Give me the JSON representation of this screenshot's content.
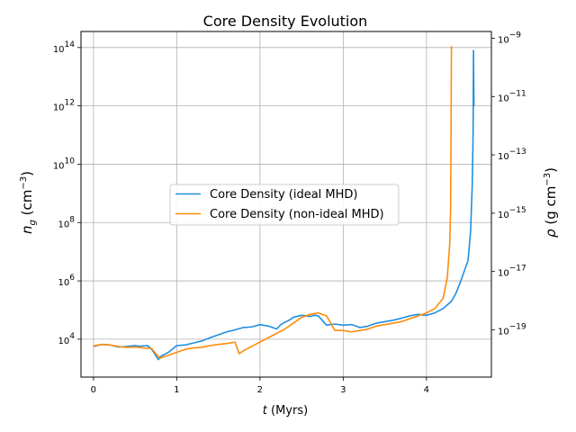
{
  "chart_data": {
    "type": "line",
    "title": "Core Density Evolution",
    "xlabel_var": "t",
    "xlabel_unit": " (Myrs)",
    "ylabel_left_var": "n",
    "ylabel_left_sub": "g",
    "ylabel_left_unit": " (cm",
    "ylabel_left_exp": "−3",
    "ylabel_left_close": ")",
    "ylabel_right_var": "ρ",
    "ylabel_right_unit": " (g cm",
    "ylabel_right_exp": "−3",
    "ylabel_right_close": ")",
    "xlim": [
      -0.15,
      4.78
    ],
    "ylim_log10_ng": [
      2.7,
      14.55
    ],
    "ylim_log10_rho": [
      -20.62,
      -8.77
    ],
    "x_ticks": [
      0,
      1,
      2,
      3,
      4
    ],
    "y_left_ticks": [
      4,
      6,
      8,
      10,
      12,
      14
    ],
    "y_right_ticks": [
      -19,
      -17,
      -15,
      -13,
      -11,
      -9
    ],
    "grid": true,
    "legend_position": "center",
    "series": [
      {
        "name": "Core Density (ideal MHD)",
        "color": "#1f8fe0",
        "x": [
          0,
          0.1,
          0.2,
          0.3,
          0.4,
          0.5,
          0.55,
          0.65,
          0.7,
          0.78,
          0.8,
          0.9,
          1.0,
          1.1,
          1.2,
          1.3,
          1.4,
          1.5,
          1.6,
          1.7,
          1.8,
          1.9,
          2.0,
          2.1,
          2.2,
          2.25,
          2.3,
          2.35,
          2.4,
          2.5,
          2.6,
          2.65,
          2.7,
          2.8,
          2.9,
          3.0,
          3.1,
          3.2,
          3.3,
          3.4,
          3.5,
          3.6,
          3.7,
          3.8,
          3.9,
          4.0,
          4.1,
          4.2,
          4.3,
          4.35,
          4.4,
          4.45,
          4.5,
          4.53,
          4.55,
          4.56,
          4.565,
          4.57
        ],
        "y": [
          3.75,
          3.82,
          3.8,
          3.73,
          3.75,
          3.78,
          3.76,
          3.78,
          3.65,
          3.3,
          3.4,
          3.55,
          3.78,
          3.8,
          3.87,
          3.94,
          4.05,
          4.15,
          4.25,
          4.32,
          4.4,
          4.42,
          4.5,
          4.45,
          4.35,
          4.5,
          4.58,
          4.65,
          4.75,
          4.82,
          4.78,
          4.82,
          4.8,
          4.48,
          4.52,
          4.48,
          4.5,
          4.4,
          4.45,
          4.55,
          4.6,
          4.65,
          4.72,
          4.8,
          4.85,
          4.82,
          4.9,
          5.05,
          5.3,
          5.55,
          5.9,
          6.3,
          6.7,
          7.7,
          9.3,
          11.0,
          13.9,
          12.0
        ]
      },
      {
        "name": "Core Density (non-ideal MHD)",
        "color": "#ff8c0a",
        "x": [
          0,
          0.1,
          0.2,
          0.3,
          0.4,
          0.5,
          0.6,
          0.7,
          0.75,
          0.8,
          0.9,
          1.0,
          1.1,
          1.2,
          1.3,
          1.4,
          1.5,
          1.6,
          1.7,
          1.75,
          1.8,
          1.9,
          2.0,
          2.1,
          2.2,
          2.3,
          2.4,
          2.5,
          2.6,
          2.7,
          2.8,
          2.9,
          3.0,
          3.1,
          3.2,
          3.3,
          3.4,
          3.5,
          3.6,
          3.7,
          3.8,
          3.9,
          4.0,
          4.1,
          4.2,
          4.25,
          4.28,
          4.29,
          4.295,
          4.3
        ],
        "y": [
          3.77,
          3.82,
          3.8,
          3.75,
          3.72,
          3.73,
          3.7,
          3.68,
          3.5,
          3.35,
          3.45,
          3.55,
          3.65,
          3.7,
          3.72,
          3.78,
          3.82,
          3.85,
          3.9,
          3.5,
          3.6,
          3.75,
          3.9,
          4.05,
          4.2,
          4.35,
          4.55,
          4.75,
          4.85,
          4.9,
          4.8,
          4.3,
          4.3,
          4.25,
          4.3,
          4.35,
          4.45,
          4.5,
          4.55,
          4.6,
          4.7,
          4.8,
          4.9,
          5.05,
          5.4,
          6.1,
          7.3,
          8.5,
          11.0,
          14.05
        ]
      }
    ]
  }
}
